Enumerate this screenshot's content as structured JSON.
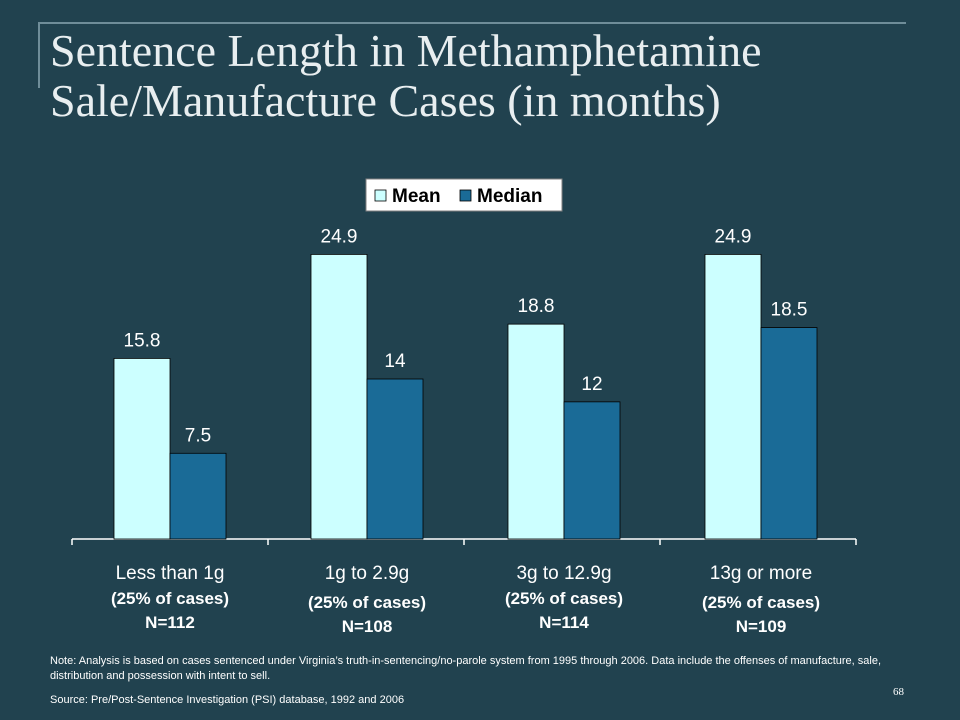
{
  "slide": {
    "title": "Sentence Length in Methamphetamine Sale/Manufacture Cases (in months)",
    "note": "Note:  Analysis is based on cases sentenced under Virginia’s truth-in-sentencing/no-parole system from 1995 through 2006.  Data include the offenses of manufacture, sale, distribution and possession with intent to sell.",
    "source": "Source:  Pre/Post-Sentence Investigation (PSI) database, 1992 and 2006",
    "page_number": "68"
  },
  "colors": {
    "background": "#21424f",
    "mean": "#ccffff",
    "median": "#1a6b97"
  },
  "chart_data": {
    "type": "bar",
    "title": "",
    "xlabel": "",
    "ylabel": "",
    "ylim": [
      0,
      28
    ],
    "grid": false,
    "legend_position": "top-center",
    "categories": [
      [
        "Less than 1g",
        "(25% of cases)",
        "N=112"
      ],
      [
        "1g to 2.9g",
        "(25% of cases)",
        "N=108"
      ],
      [
        "3g to 12.9g",
        "(25% of cases)",
        "N=114"
      ],
      [
        "13g or more",
        "(25% of cases)",
        "N=109"
      ]
    ],
    "series": [
      {
        "name": "Mean",
        "color": "#ccffff",
        "values": [
          15.8,
          24.9,
          18.8,
          24.9
        ],
        "labels": [
          "15.8",
          "24.9",
          "18.8",
          "24.9"
        ]
      },
      {
        "name": "Median",
        "color": "#1a6b97",
        "values": [
          7.5,
          14,
          12,
          18.5
        ],
        "labels": [
          "7.5",
          "14",
          "12",
          "18.5"
        ]
      }
    ]
  }
}
